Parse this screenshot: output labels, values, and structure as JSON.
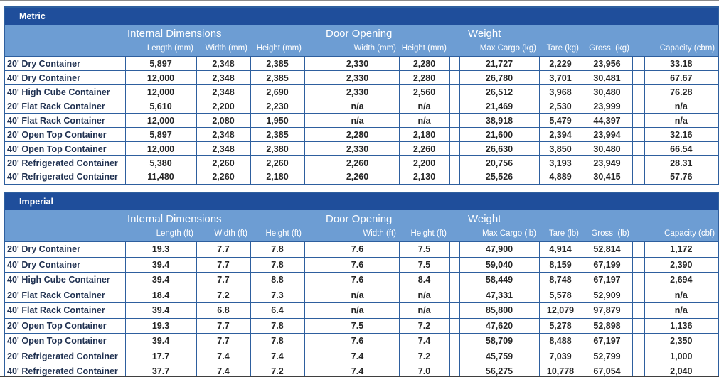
{
  "colors": {
    "title_band": "#1F4E9B",
    "header_band": "#6D9DD3",
    "grid_border": "#2E5F9E",
    "header_text": "#FFFFFF",
    "row_label_text": "#1F3050",
    "value_text": "#262626",
    "row_background": "#FFFFFF"
  },
  "chart_data": [
    {
      "type": "table",
      "title": "Metric",
      "group_headers": [
        "Internal Dimensions",
        "Door Opening",
        "Weight"
      ],
      "columns": [
        "Length (mm)",
        "Width (mm)",
        "Height (mm)",
        "Width (mm)",
        "Height (mm)",
        "Max Cargo (kg)",
        "Tare (kg)",
        "Gross  (kg)",
        "Capacity (cbm)"
      ],
      "rows": [
        {
          "label": "20' Dry Container",
          "values": [
            "5,897",
            "2,348",
            "2,385",
            "2,330",
            "2,280",
            "21,727",
            "2,229",
            "23,956",
            "33.18"
          ]
        },
        {
          "label": "40' Dry Container",
          "values": [
            "12,000",
            "2,348",
            "2,385",
            "2,330",
            "2,280",
            "26,780",
            "3,701",
            "30,481",
            "67.67"
          ]
        },
        {
          "label": "40' High Cube Container",
          "values": [
            "12,000",
            "2,348",
            "2,690",
            "2,330",
            "2,560",
            "26,512",
            "3,968",
            "30,480",
            "76.28"
          ]
        },
        {
          "label": "20' Flat Rack Container",
          "values": [
            "5,610",
            "2,200",
            "2,230",
            "n/a",
            "n/a",
            "21,469",
            "2,530",
            "23,999",
            "n/a"
          ]
        },
        {
          "label": "40' Flat Rack Container",
          "values": [
            "12,000",
            "2,080",
            "1,950",
            "n/a",
            "n/a",
            "38,918",
            "5,479",
            "44,397",
            "n/a"
          ]
        },
        {
          "label": "20' Open Top Container",
          "values": [
            "5,897",
            "2,348",
            "2,385",
            "2,280",
            "2,180",
            "21,600",
            "2,394",
            "23,994",
            "32.16"
          ]
        },
        {
          "label": "40' Open Top Container",
          "values": [
            "12,000",
            "2,348",
            "2,380",
            "2,330",
            "2,260",
            "26,630",
            "3,850",
            "30,480",
            "66.54"
          ]
        },
        {
          "label": "20' Refrigerated Container",
          "values": [
            "5,380",
            "2,260",
            "2,260",
            "2,260",
            "2,200",
            "20,756",
            "3,193",
            "23,949",
            "28.31"
          ]
        },
        {
          "label": "40' Refrigerated Container",
          "values": [
            "11,480",
            "2,260",
            "2,180",
            "2,260",
            "2,130",
            "25,526",
            "4,889",
            "30,415",
            "57.76"
          ]
        }
      ]
    },
    {
      "type": "table",
      "title": "Imperial",
      "group_headers": [
        "Internal Dimensions",
        "Door Opening",
        "Weight"
      ],
      "columns": [
        "Length (ft)",
        "Width (ft)",
        "Height (ft)",
        "Width (ft)",
        "Height (ft)",
        "Max Cargo (lb)",
        "Tare (lb)",
        "Gross  (lb)",
        "Capacity (cbf)"
      ],
      "rows": [
        {
          "label": "20' Dry Container",
          "values": [
            "19.3",
            "7.7",
            "7.8",
            "7.6",
            "7.5",
            "47,900",
            "4,914",
            "52,814",
            "1,172"
          ]
        },
        {
          "label": "40' Dry Container",
          "values": [
            "39.4",
            "7.7",
            "7.8",
            "7.6",
            "7.5",
            "59,040",
            "8,159",
            "67,199",
            "2,390"
          ]
        },
        {
          "label": "40' High Cube Container",
          "values": [
            "39.4",
            "7.7",
            "8.8",
            "7.6",
            "8.4",
            "58,449",
            "8,748",
            "67,197",
            "2,694"
          ]
        },
        {
          "label": "20' Flat Rack Container",
          "values": [
            "18.4",
            "7.2",
            "7.3",
            "n/a",
            "n/a",
            "47,331",
            "5,578",
            "52,909",
            "n/a"
          ]
        },
        {
          "label": "40' Flat Rack Container",
          "values": [
            "39.4",
            "6.8",
            "6.4",
            "n/a",
            "n/a",
            "85,800",
            "12,079",
            "97,879",
            "n/a"
          ]
        },
        {
          "label": "20' Open Top Container",
          "values": [
            "19.3",
            "7.7",
            "7.8",
            "7.5",
            "7.2",
            "47,620",
            "5,278",
            "52,898",
            "1,136"
          ]
        },
        {
          "label": "40' Open Top Container",
          "values": [
            "39.4",
            "7.7",
            "7.8",
            "7.6",
            "7.4",
            "58,709",
            "8,488",
            "67,197",
            "2,350"
          ]
        },
        {
          "label": "20' Refrigerated Container",
          "values": [
            "17.7",
            "7.4",
            "7.4",
            "7.4",
            "7.2",
            "45,759",
            "7,039",
            "52,799",
            "1,000"
          ]
        },
        {
          "label": "40' Refrigerated Container",
          "values": [
            "37.7",
            "7.4",
            "7.2",
            "7.4",
            "7.0",
            "56,275",
            "10,778",
            "67,054",
            "2,040"
          ]
        }
      ]
    }
  ]
}
